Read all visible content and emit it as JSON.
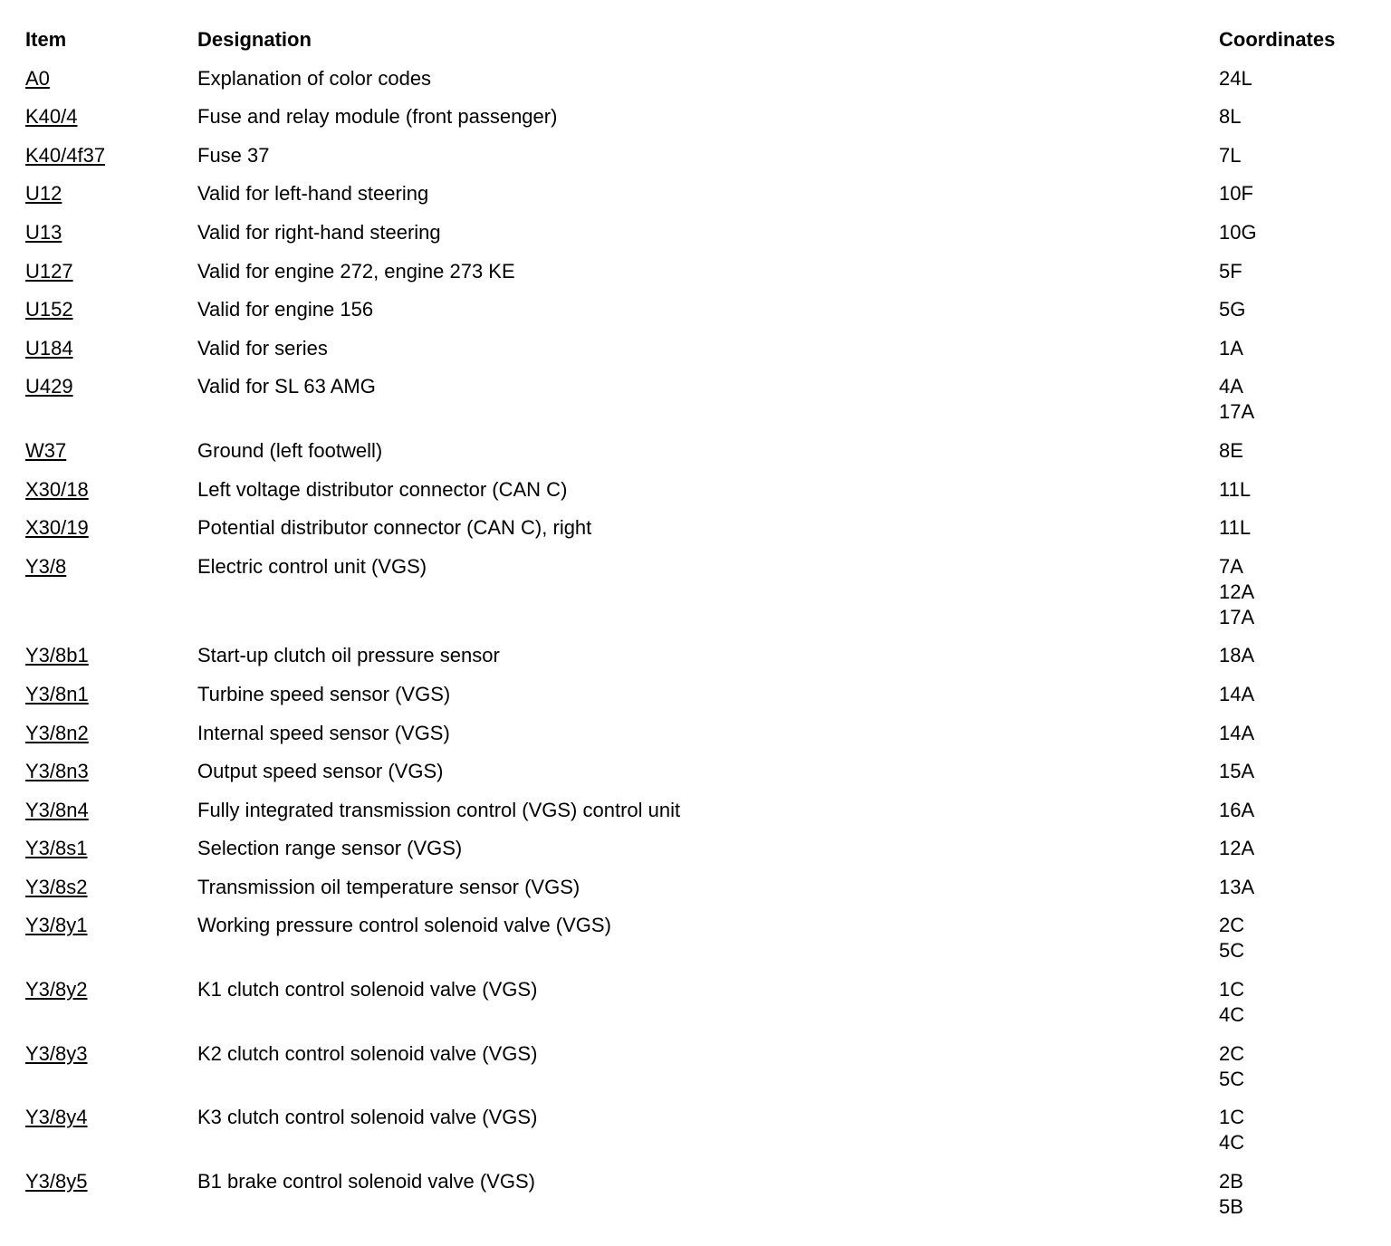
{
  "table": {
    "header": [
      "Item",
      "Designation",
      "Coordinates"
    ],
    "rows": [
      {
        "item": "A0",
        "designation": "Explanation of color codes",
        "coordinates": [
          "24L"
        ]
      },
      {
        "item": "K40/4",
        "designation": "Fuse and relay module (front passenger)",
        "coordinates": [
          "8L"
        ]
      },
      {
        "item": "K40/4f37",
        "designation": "Fuse 37",
        "coordinates": [
          "7L"
        ]
      },
      {
        "item": "U12",
        "designation": "Valid for left-hand steering",
        "coordinates": [
          "10F"
        ]
      },
      {
        "item": "U13",
        "designation": "Valid for right-hand steering",
        "coordinates": [
          "10G"
        ]
      },
      {
        "item": "U127",
        "designation": "Valid for engine 272, engine 273 KE",
        "coordinates": [
          "5F"
        ]
      },
      {
        "item": "U152",
        "designation": "Valid for engine 156",
        "coordinates": [
          "5G"
        ]
      },
      {
        "item": "U184",
        "designation": "Valid for series",
        "coordinates": [
          "1A"
        ]
      },
      {
        "item": "U429",
        "designation": "Valid for SL 63 AMG",
        "coordinates": [
          "4A",
          "17A"
        ]
      },
      {
        "item": "W37",
        "designation": "Ground (left footwell)",
        "coordinates": [
          "8E"
        ]
      },
      {
        "item": "X30/18",
        "designation": "Left voltage distributor connector (CAN C)",
        "coordinates": [
          "11L"
        ]
      },
      {
        "item": "X30/19",
        "designation": "Potential distributor connector (CAN C), right",
        "coordinates": [
          "11L"
        ]
      },
      {
        "item": "Y3/8",
        "designation": "Electric control unit (VGS)",
        "coordinates": [
          "7A",
          "12A",
          "17A"
        ]
      },
      {
        "item": "Y3/8b1",
        "designation": "Start-up clutch oil pressure sensor",
        "coordinates": [
          "18A"
        ]
      },
      {
        "item": "Y3/8n1",
        "designation": "Turbine speed sensor (VGS)",
        "coordinates": [
          "14A"
        ]
      },
      {
        "item": "Y3/8n2",
        "designation": "Internal speed sensor (VGS)",
        "coordinates": [
          "14A"
        ]
      },
      {
        "item": "Y3/8n3",
        "designation": "Output speed sensor (VGS)",
        "coordinates": [
          "15A"
        ]
      },
      {
        "item": "Y3/8n4",
        "designation": "Fully integrated transmission control (VGS) control unit",
        "coordinates": [
          "16A"
        ]
      },
      {
        "item": "Y3/8s1",
        "designation": "Selection range sensor (VGS)",
        "coordinates": [
          "12A"
        ]
      },
      {
        "item": "Y3/8s2",
        "designation": "Transmission oil temperature sensor (VGS)",
        "coordinates": [
          "13A"
        ]
      },
      {
        "item": "Y3/8y1",
        "designation": "Working pressure control solenoid valve (VGS)",
        "coordinates": [
          "2C",
          "5C"
        ]
      },
      {
        "item": "Y3/8y2",
        "designation": "K1 clutch control solenoid valve (VGS)",
        "coordinates": [
          "1C",
          "4C"
        ]
      },
      {
        "item": "Y3/8y3",
        "designation": "K2 clutch control solenoid valve (VGS)",
        "coordinates": [
          "2C",
          "5C"
        ]
      },
      {
        "item": "Y3/8y4",
        "designation": "K3 clutch control solenoid valve (VGS)",
        "coordinates": [
          "1C",
          "4C"
        ]
      },
      {
        "item": "Y3/8y5",
        "designation": "B1 brake control solenoid valve (VGS)",
        "coordinates": [
          "2B",
          "5B"
        ]
      }
    ]
  }
}
